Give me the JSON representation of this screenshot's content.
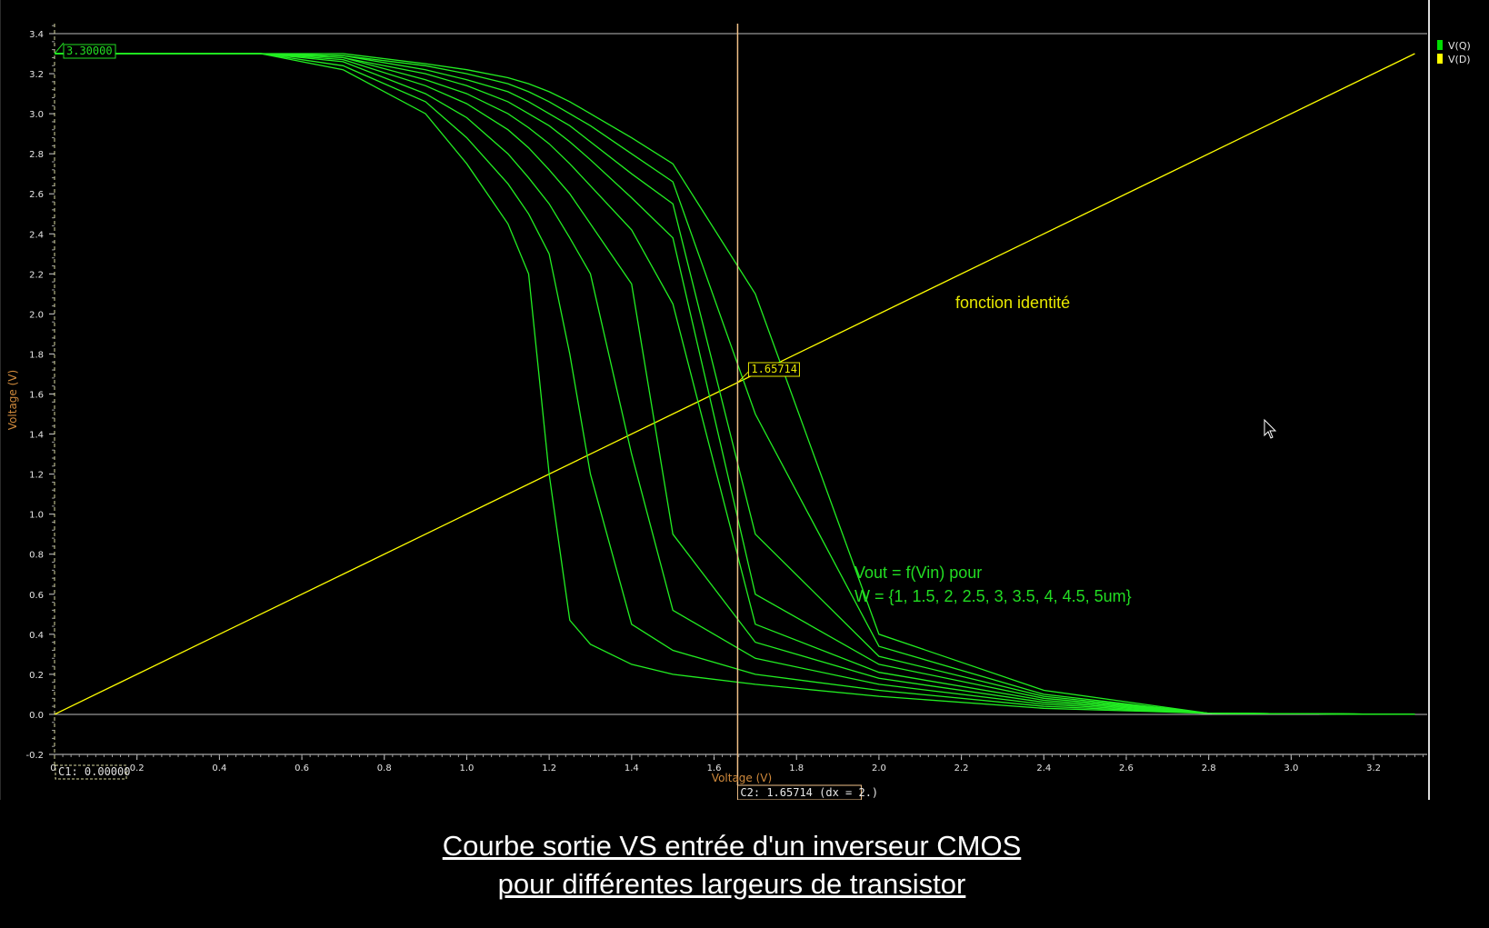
{
  "chart_data": {
    "type": "line",
    "title": "",
    "xlabel": "Voltage (V)",
    "ylabel": "Voltage (V)",
    "xlim": [
      0,
      3.33
    ],
    "ylim": [
      -0.2,
      3.45
    ],
    "x_ticks": [
      "0.2",
      "0.4",
      "0.6",
      "0.8",
      "1.0",
      "1.2",
      "1.4",
      "1.6",
      "1.8",
      "2.0",
      "2.2",
      "2.4",
      "2.6",
      "2.8",
      "3.0",
      "3.2"
    ],
    "y_ticks": [
      "-0.2",
      "0.0",
      "0.2",
      "0.4",
      "0.6",
      "0.8",
      "1.0",
      "1.2",
      "1.4",
      "1.6",
      "1.8",
      "2.0",
      "2.2",
      "2.4",
      "2.6",
      "2.8",
      "3.0",
      "3.2",
      "3.4"
    ],
    "reference_lines_y": [
      0,
      3.4
    ],
    "legend": {
      "position": "top-right",
      "entries": [
        {
          "label": "V(Q)",
          "color": "#00dd00"
        },
        {
          "label": "V(D)",
          "color": "#ffff00"
        }
      ]
    },
    "series": [
      {
        "name": "V(D)",
        "color": "#ffff00",
        "x": [
          0,
          3.3
        ],
        "y": [
          0,
          3.3
        ]
      },
      {
        "name": "V(Q)",
        "color": "#22ee22",
        "sweep_W_um": [
          1,
          1.5,
          2,
          2.5,
          3,
          3.5,
          4,
          4.5,
          5
        ],
        "x": [
          0,
          0.5,
          0.7,
          0.9,
          1.0,
          1.1,
          1.15,
          1.2,
          1.25,
          1.3,
          1.4,
          1.5,
          1.7,
          2.0,
          2.4,
          2.8,
          3.3
        ],
        "curves": [
          [
            3.3,
            3.3,
            3.22,
            3.0,
            2.75,
            2.45,
            2.2,
            1.2,
            0.47,
            0.35,
            0.25,
            0.2,
            0.15,
            0.09,
            0.03,
            0.005,
            0.0
          ],
          [
            3.3,
            3.3,
            3.24,
            3.06,
            2.88,
            2.65,
            2.5,
            2.3,
            1.8,
            1.2,
            0.45,
            0.32,
            0.2,
            0.12,
            0.04,
            0.005,
            0.0
          ],
          [
            3.3,
            3.3,
            3.26,
            3.1,
            2.98,
            2.8,
            2.68,
            2.55,
            2.38,
            2.2,
            1.3,
            0.52,
            0.28,
            0.15,
            0.05,
            0.005,
            0.0
          ],
          [
            3.3,
            3.3,
            3.27,
            3.14,
            3.05,
            2.92,
            2.83,
            2.72,
            2.6,
            2.45,
            2.15,
            0.9,
            0.36,
            0.18,
            0.06,
            0.005,
            0.0
          ],
          [
            3.3,
            3.3,
            3.28,
            3.17,
            3.1,
            3.0,
            2.93,
            2.85,
            2.75,
            2.64,
            2.42,
            2.05,
            0.45,
            0.21,
            0.07,
            0.005,
            0.0
          ],
          [
            3.3,
            3.3,
            3.28,
            3.2,
            3.14,
            3.06,
            3.0,
            2.94,
            2.86,
            2.77,
            2.58,
            2.38,
            0.6,
            0.25,
            0.08,
            0.005,
            0.0
          ],
          [
            3.3,
            3.3,
            3.29,
            3.22,
            3.17,
            3.11,
            3.06,
            3.0,
            2.94,
            2.86,
            2.7,
            2.55,
            0.9,
            0.29,
            0.09,
            0.005,
            0.0
          ],
          [
            3.3,
            3.3,
            3.29,
            3.24,
            3.2,
            3.15,
            3.11,
            3.06,
            3.0,
            2.94,
            2.8,
            2.66,
            1.5,
            0.34,
            0.1,
            0.005,
            0.0
          ],
          [
            3.3,
            3.3,
            3.3,
            3.25,
            3.22,
            3.18,
            3.15,
            3.11,
            3.06,
            3.0,
            2.88,
            2.75,
            2.1,
            0.4,
            0.12,
            0.005,
            0.0
          ]
        ]
      }
    ],
    "cursors": {
      "c1": {
        "x": 0.0,
        "label": "C1: 0.00000",
        "y_readout": "3.30000",
        "color": "#d8d8a0"
      },
      "c2": {
        "x": 1.65714,
        "label": "C2: 1.65714 (dx = 2.)",
        "y_readout": "1.65714",
        "color": "#f0c088"
      }
    },
    "annotations": {
      "identity": "fonction identité",
      "vout_line1": "Vout = f(Vin) pour",
      "vout_line2": "W = {1, 1.5, 2, 2.5, 3, 3.5, 4, 4.5, 5um}"
    },
    "grid": false
  },
  "caption": {
    "line1": "Courbe sortie VS entrée d'un inverseur CMOS",
    "line2": "pour différentes largeurs de transistor"
  }
}
